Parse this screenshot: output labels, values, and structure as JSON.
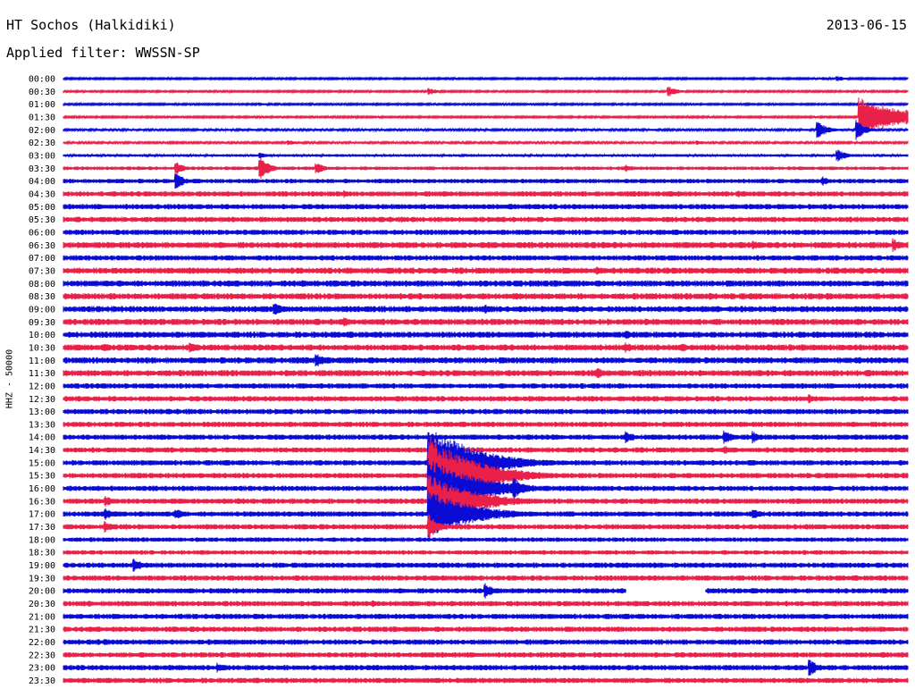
{
  "header": {
    "station": "HT Sochos (Halkidiki)",
    "date": "2013-06-15",
    "filter": "Applied filter: WWSSN-SP"
  },
  "chart_data": {
    "type": "line",
    "title": "HT Sochos (Halkidiki)",
    "ylabel": "HHZ - 50000",
    "xlabel": "",
    "colors": [
      "#0b0bd6",
      "#e8204a"
    ],
    "row_labels": [
      "00:00",
      "00:30",
      "01:00",
      "01:30",
      "02:00",
      "02:30",
      "03:00",
      "03:30",
      "04:00",
      "04:30",
      "05:00",
      "05:30",
      "06:00",
      "06:30",
      "07:00",
      "07:30",
      "08:00",
      "08:30",
      "09:00",
      "09:30",
      "10:00",
      "10:30",
      "11:00",
      "11:30",
      "12:00",
      "12:30",
      "13:00",
      "13:30",
      "14:00",
      "14:30",
      "15:00",
      "15:30",
      "16:00",
      "16:30",
      "17:00",
      "17:30",
      "18:00",
      "18:30",
      "19:00",
      "19:30",
      "20:00",
      "20:30",
      "21:00",
      "21:30",
      "22:00",
      "22:30",
      "23:00",
      "23:30"
    ],
    "noise_level": [
      1,
      1,
      1,
      1,
      1.2,
      1.2,
      1.5,
      2,
      2.5,
      3,
      3,
      3,
      3,
      3.5,
      3,
      3.5,
      3.5,
      3.5,
      3.5,
      3.5,
      3.5,
      3.5,
      3.5,
      3.5,
      3,
      3,
      3,
      3,
      3,
      3,
      3,
      3,
      3,
      3,
      3,
      3,
      2.5,
      2.5,
      3,
      3,
      3,
      3,
      3,
      3,
      3,
      3,
      3,
      3
    ],
    "events": [
      {
        "row": "00:00",
        "minute": 27,
        "amp": 2
      },
      {
        "row": "00:00",
        "minute": 27.5,
        "amp": 3
      },
      {
        "row": "00:30",
        "minute": 13,
        "amp": 4
      },
      {
        "row": "00:30",
        "minute": 21.5,
        "amp": 6
      },
      {
        "row": "01:00",
        "minute": 7,
        "amp": 2
      },
      {
        "row": "01:30",
        "minute": 28.3,
        "amp": 22
      },
      {
        "row": "02:00",
        "minute": 26.8,
        "amp": 10
      },
      {
        "row": "02:00",
        "minute": 28.2,
        "amp": 10
      },
      {
        "row": "02:30",
        "minute": 8,
        "amp": 3
      },
      {
        "row": "02:30",
        "minute": 22.5,
        "amp": 3
      },
      {
        "row": "03:00",
        "minute": 27.5,
        "amp": 7
      },
      {
        "row": "03:00",
        "minute": 7,
        "amp": 3
      },
      {
        "row": "03:30",
        "minute": 4,
        "amp": 7
      },
      {
        "row": "03:30",
        "minute": 7,
        "amp": 13
      },
      {
        "row": "03:30",
        "minute": 9,
        "amp": 6
      },
      {
        "row": "03:30",
        "minute": 20,
        "amp": 4
      },
      {
        "row": "04:00",
        "minute": 4,
        "amp": 9
      },
      {
        "row": "04:00",
        "minute": 27,
        "amp": 5
      },
      {
        "row": "04:30",
        "minute": 10,
        "amp": 4
      },
      {
        "row": "04:30",
        "minute": 24,
        "amp": 4
      },
      {
        "row": "06:30",
        "minute": 24.5,
        "amp": 6
      },
      {
        "row": "06:30",
        "minute": 29.5,
        "amp": 7
      },
      {
        "row": "07:30",
        "minute": 19,
        "amp": 5
      },
      {
        "row": "08:00",
        "minute": 8.5,
        "amp": 4
      },
      {
        "row": "08:30",
        "minute": 23,
        "amp": 4
      },
      {
        "row": "09:00",
        "minute": 7.5,
        "amp": 8
      },
      {
        "row": "09:00",
        "minute": 15,
        "amp": 5
      },
      {
        "row": "09:30",
        "minute": 10,
        "amp": 5
      },
      {
        "row": "10:00",
        "minute": 20,
        "amp": 5
      },
      {
        "row": "10:30",
        "minute": 1.5,
        "amp": 5
      },
      {
        "row": "10:30",
        "minute": 4.5,
        "amp": 6
      },
      {
        "row": "10:30",
        "minute": 20,
        "amp": 6
      },
      {
        "row": "10:30",
        "minute": 22,
        "amp": 5
      },
      {
        "row": "11:00",
        "minute": 9,
        "amp": 8
      },
      {
        "row": "11:30",
        "minute": 19,
        "amp": 6
      },
      {
        "row": "12:30",
        "minute": 26.5,
        "amp": 5
      },
      {
        "row": "14:00",
        "minute": 20,
        "amp": 7
      },
      {
        "row": "14:00",
        "minute": 23.5,
        "amp": 8
      },
      {
        "row": "14:00",
        "minute": 24.5,
        "amp": 7
      },
      {
        "row": "14:30",
        "minute": 23.5,
        "amp": 5
      },
      {
        "row": "15:00",
        "minute": 13,
        "amp": 44
      },
      {
        "row": "15:30",
        "minute": 13,
        "amp": 46
      },
      {
        "row": "16:00",
        "minute": 13,
        "amp": 36
      },
      {
        "row": "16:00",
        "minute": 16,
        "amp": 14
      },
      {
        "row": "16:30",
        "minute": 13,
        "amp": 30
      },
      {
        "row": "16:30",
        "minute": 1.5,
        "amp": 6
      },
      {
        "row": "17:00",
        "minute": 13,
        "amp": 26
      },
      {
        "row": "17:00",
        "minute": 1.5,
        "amp": 7
      },
      {
        "row": "17:00",
        "minute": 4,
        "amp": 6
      },
      {
        "row": "17:00",
        "minute": 24.5,
        "amp": 6
      },
      {
        "row": "17:30",
        "minute": 13,
        "amp": 14
      },
      {
        "row": "17:30",
        "minute": 1.5,
        "amp": 6
      },
      {
        "row": "19:00",
        "minute": 2.5,
        "amp": 8
      },
      {
        "row": "20:00",
        "minute": 15,
        "amp": 9
      },
      {
        "row": "20:30",
        "minute": 11,
        "amp": 4
      },
      {
        "row": "21:30",
        "minute": 2,
        "amp": 3
      },
      {
        "row": "22:00",
        "minute": 1.5,
        "amp": 4
      },
      {
        "row": "23:00",
        "minute": 5.5,
        "amp": 5
      },
      {
        "row": "23:00",
        "minute": 26.5,
        "amp": 10
      }
    ],
    "gap": {
      "row": "20:00",
      "start_minute": 20,
      "end_minute": 22.8
    },
    "grid": false,
    "legend": "none"
  }
}
